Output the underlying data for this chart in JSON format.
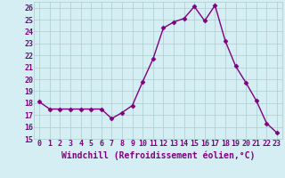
{
  "x": [
    0,
    1,
    2,
    3,
    4,
    5,
    6,
    7,
    8,
    9,
    10,
    11,
    12,
    13,
    14,
    15,
    16,
    17,
    18,
    19,
    20,
    21,
    22,
    23
  ],
  "y": [
    18.1,
    17.5,
    17.5,
    17.5,
    17.5,
    17.5,
    17.5,
    16.7,
    17.2,
    17.8,
    19.8,
    21.7,
    24.3,
    24.8,
    25.1,
    26.1,
    24.9,
    26.2,
    23.2,
    21.1,
    19.7,
    18.2,
    16.3,
    15.5
  ],
  "line_color": "#800080",
  "marker": "D",
  "marker_size": 2.5,
  "bg_color": "#d4eef4",
  "grid_color": "#aacccc",
  "xlabel": "Windchill (Refroidissement éolien,°C)",
  "xlim": [
    -0.5,
    23.5
  ],
  "ylim": [
    15,
    26.5
  ],
  "yticks": [
    15,
    16,
    17,
    18,
    19,
    20,
    21,
    22,
    23,
    24,
    25,
    26
  ],
  "xtick_labels": [
    "0",
    "1",
    "2",
    "3",
    "4",
    "5",
    "6",
    "7",
    "8",
    "9",
    "10",
    "11",
    "12",
    "13",
    "14",
    "15",
    "16",
    "17",
    "18",
    "19",
    "20",
    "21",
    "22",
    "23"
  ],
  "xlabel_fontsize": 7,
  "tick_fontsize": 6,
  "line_width": 1.0
}
